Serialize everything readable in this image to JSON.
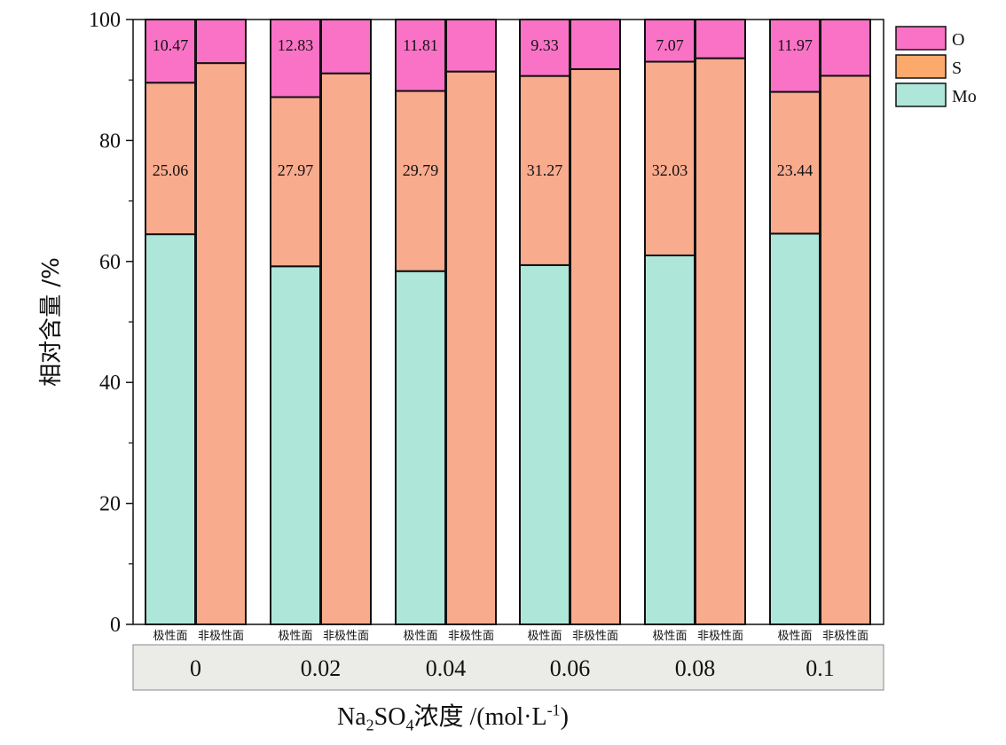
{
  "chart_data": {
    "type": "bar",
    "stacked": true,
    "ylabel": "相对含量 /%",
    "xlabel": {
      "formula_main": "Na",
      "formula_sub1": "2",
      "formula_mid": "SO",
      "formula_sub2": "4",
      "label_zh": "浓度",
      "unit_pre": " /(mol·L",
      "unit_sup": "-1",
      "unit_post": ")"
    },
    "ylim": [
      0,
      100
    ],
    "yticks": [
      "0",
      "20",
      "40",
      "60",
      "80",
      "100"
    ],
    "grid": false,
    "legend_position": "top-right",
    "group_labels": [
      "0",
      "0.02",
      "0.04",
      "0.06",
      "0.08",
      "0.1"
    ],
    "bar_labels": [
      "极性面",
      "非极性面"
    ],
    "series": [
      {
        "name": "Mo",
        "color": "#aee7da",
        "values": [
          64.5,
          0,
          59.2,
          0,
          58.4,
          0,
          59.4,
          0,
          61.0,
          0,
          64.6,
          0
        ]
      },
      {
        "name": "S",
        "color": "#f9ab8d",
        "values": [
          25.06,
          92.8,
          27.97,
          91.1,
          29.79,
          91.4,
          31.27,
          91.8,
          32.03,
          93.6,
          23.44,
          90.7
        ]
      },
      {
        "name": "O",
        "color": "#fa72c6",
        "values": [
          10.47,
          7.2,
          12.83,
          8.9,
          11.81,
          8.6,
          9.33,
          8.2,
          7.07,
          6.4,
          11.97,
          9.3
        ]
      }
    ],
    "data_labels": {
      "O": [
        "10.47",
        "12.83",
        "11.81",
        "9.33",
        "7.07",
        "11.97"
      ],
      "S": [
        "25.06",
        "27.97",
        "29.79",
        "31.27",
        "32.03",
        "23.44"
      ]
    },
    "legend_swatch_colors": {
      "O": "#fa72c6",
      "S": "#fcaa6c",
      "Mo": "#aee7da"
    }
  }
}
